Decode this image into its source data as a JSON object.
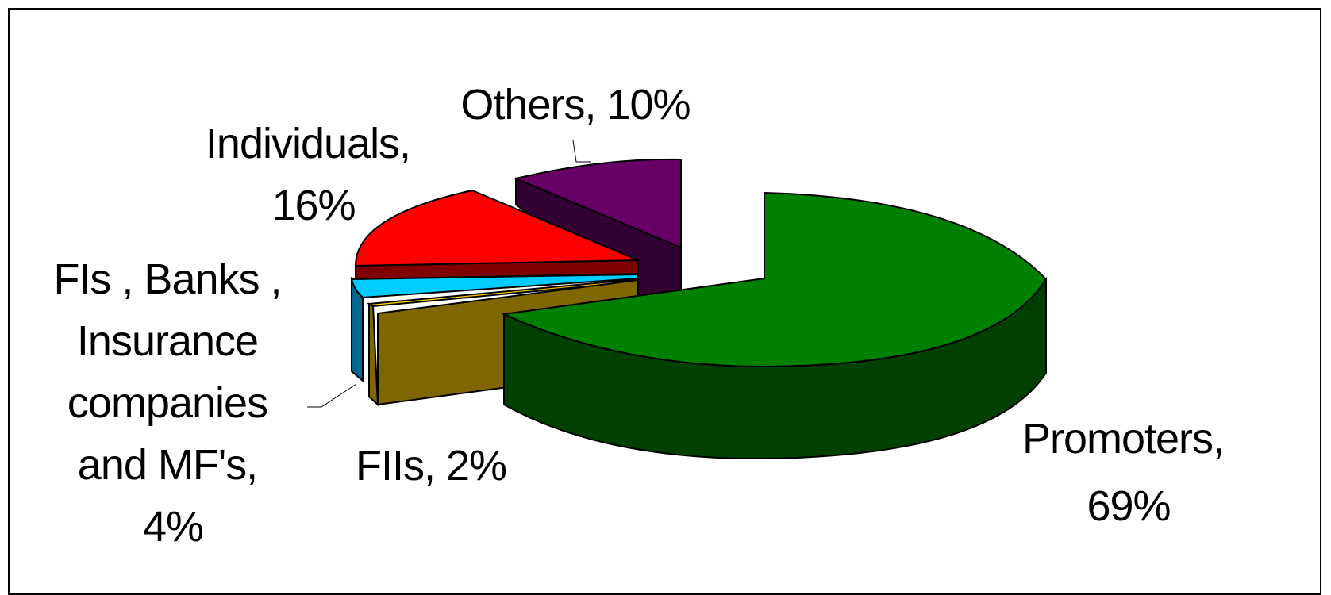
{
  "chart_data": {
    "type": "pie",
    "style": "3d-exploded",
    "title": "",
    "slices": [
      {
        "label": "Promoters",
        "value": 69,
        "display": "Promoters, 69%",
        "color": "#008000",
        "side_color": "#004000"
      },
      {
        "label": "FIIs",
        "value": 2,
        "display": "FIIs, 2%",
        "color": "#806600",
        "side_color": "#806600",
        "extra_colors": [
          "#FFCC00"
        ]
      },
      {
        "label": "FIs , Banks , Insurance companies and MF's",
        "value": 4,
        "display": "FIs , Banks , Insurance companies and MF's, 4%",
        "color": "#00CCFF",
        "side_color": "#00668F"
      },
      {
        "label": "Individuals",
        "value": 16,
        "display": "Individuals, 16%",
        "color": "#FF0000",
        "side_color": "#800000"
      },
      {
        "label": "Others",
        "value": 10,
        "display": "Others, 10%",
        "color": "#660066",
        "side_color": "#330033"
      }
    ],
    "legend": "none"
  },
  "labels": {
    "promoters": [
      "Promoters,",
      "69%"
    ],
    "fiis": [
      "FIIs, 2%"
    ],
    "fis": [
      "FIs , Banks ,",
      "Insurance",
      "companies",
      "and MF's,",
      "4%"
    ],
    "individuals": [
      "Individuals,",
      "16%"
    ],
    "others": [
      "Others, 10%"
    ]
  }
}
